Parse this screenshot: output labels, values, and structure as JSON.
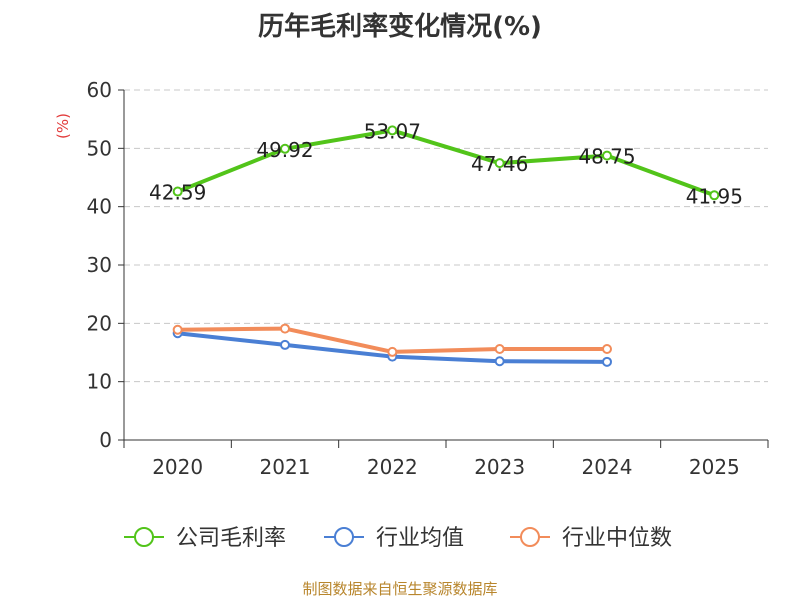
{
  "chart_data": {
    "type": "line",
    "title": "历年毛利率变化情况(%)",
    "ylabel": "(%)",
    "categories": [
      "2020",
      "2021",
      "2022",
      "2023",
      "2024",
      "2025"
    ],
    "ylim": [
      0,
      60
    ],
    "yticks": [
      0,
      10,
      20,
      30,
      40,
      50,
      60
    ],
    "grid": "horizontal-dashed",
    "legend_position": "bottom",
    "series": [
      {
        "name": "公司毛利率",
        "color": "#52c41a",
        "labels": true,
        "values": [
          42.59,
          49.92,
          53.07,
          47.46,
          48.75,
          41.95
        ]
      },
      {
        "name": "行业均值",
        "color": "#4a7fd4",
        "labels": false,
        "values": [
          18.3,
          16.3,
          14.3,
          13.5,
          13.4,
          null
        ]
      },
      {
        "name": "行业中位数",
        "color": "#f28c5a",
        "labels": false,
        "values": [
          18.9,
          19.1,
          15.1,
          15.6,
          15.6,
          null
        ]
      }
    ]
  },
  "source": "制图数据来自恒生聚源数据库"
}
